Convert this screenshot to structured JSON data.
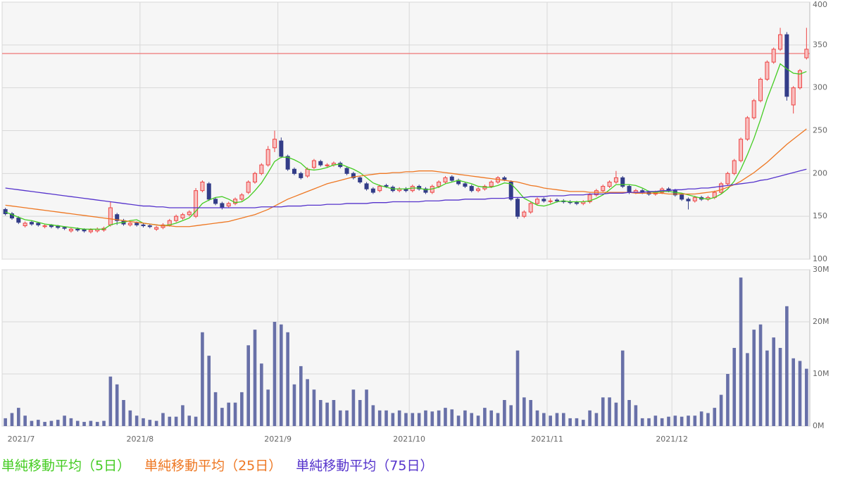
{
  "chart_data": {
    "type": "candlestick",
    "categories": [
      "2021/7",
      null,
      null,
      null,
      null,
      null,
      null,
      null,
      null,
      null,
      null,
      null,
      null,
      null,
      null,
      null,
      null,
      null,
      null,
      null,
      null,
      "2021/8",
      null,
      null,
      null,
      null,
      null,
      null,
      null,
      null,
      null,
      null,
      null,
      null,
      null,
      null,
      null,
      null,
      null,
      null,
      null,
      null,
      "2021/9",
      null,
      null,
      null,
      null,
      null,
      null,
      null,
      null,
      null,
      null,
      null,
      null,
      null,
      null,
      null,
      null,
      null,
      null,
      null,
      "2021/10",
      null,
      null,
      null,
      null,
      null,
      null,
      null,
      null,
      null,
      null,
      null,
      null,
      null,
      null,
      null,
      null,
      null,
      null,
      null,
      null,
      "2021/11",
      null,
      null,
      null,
      null,
      null,
      null,
      null,
      null,
      null,
      null,
      null,
      null,
      null,
      null,
      null,
      null,
      null,
      null,
      "2021/12",
      null,
      null,
      null,
      null,
      null,
      null,
      null,
      null,
      null,
      null,
      null,
      null,
      null,
      null,
      null,
      null,
      null,
      null,
      null,
      null
    ],
    "ohlc": [
      [
        158,
        160,
        151,
        153
      ],
      [
        153,
        155,
        146,
        148
      ],
      [
        148,
        150,
        141,
        143
      ],
      [
        139,
        144,
        137,
        142
      ],
      [
        143,
        145,
        139,
        141
      ],
      [
        142,
        143,
        138,
        140
      ],
      [
        138,
        141,
        136,
        139
      ],
      [
        140,
        141,
        136,
        138
      ],
      [
        139,
        140,
        135,
        137
      ],
      [
        137,
        138,
        134,
        136
      ],
      [
        133,
        137,
        131,
        135
      ],
      [
        135,
        137,
        132,
        134
      ],
      [
        135,
        136,
        131,
        133
      ],
      [
        132,
        136,
        130,
        134
      ],
      [
        133,
        137,
        131,
        135
      ],
      [
        134,
        138,
        132,
        136
      ],
      [
        140,
        167,
        138,
        160
      ],
      [
        152,
        154,
        140,
        145
      ],
      [
        145,
        147,
        139,
        141
      ],
      [
        140,
        144,
        138,
        142
      ],
      [
        142,
        144,
        138,
        140
      ],
      [
        140,
        142,
        137,
        139
      ],
      [
        139,
        141,
        136,
        138
      ],
      [
        135,
        139,
        133,
        137
      ],
      [
        137,
        142,
        135,
        140
      ],
      [
        140,
        147,
        138,
        145
      ],
      [
        145,
        152,
        143,
        150
      ],
      [
        148,
        154,
        146,
        152
      ],
      [
        152,
        157,
        150,
        155
      ],
      [
        150,
        183,
        148,
        180
      ],
      [
        180,
        192,
        178,
        190
      ],
      [
        188,
        190,
        168,
        170
      ],
      [
        170,
        172,
        163,
        165
      ],
      [
        165,
        167,
        158,
        160
      ],
      [
        162,
        167,
        160,
        165
      ],
      [
        165,
        172,
        163,
        170
      ],
      [
        170,
        177,
        168,
        175
      ],
      [
        178,
        192,
        176,
        190
      ],
      [
        190,
        202,
        188,
        200
      ],
      [
        200,
        212,
        198,
        210
      ],
      [
        210,
        232,
        208,
        228
      ],
      [
        230,
        250,
        225,
        240
      ],
      [
        238,
        242,
        218,
        220
      ],
      [
        220,
        222,
        203,
        205
      ],
      [
        205,
        207,
        198,
        200
      ],
      [
        200,
        202,
        193,
        195
      ],
      [
        197,
        207,
        195,
        205
      ],
      [
        207,
        217,
        205,
        215
      ],
      [
        214,
        216,
        208,
        210
      ],
      [
        209,
        212,
        207,
        210
      ],
      [
        210,
        214,
        208,
        212
      ],
      [
        212,
        214,
        206,
        208
      ],
      [
        206,
        208,
        198,
        200
      ],
      [
        200,
        202,
        193,
        195
      ],
      [
        195,
        197,
        188,
        190
      ],
      [
        188,
        190,
        180,
        182
      ],
      [
        182,
        184,
        176,
        178
      ],
      [
        180,
        187,
        178,
        185
      ],
      [
        186,
        188,
        183,
        185
      ],
      [
        184,
        186,
        178,
        180
      ],
      [
        180,
        184,
        178,
        182
      ],
      [
        182,
        184,
        178,
        180
      ],
      [
        180,
        187,
        178,
        185
      ],
      [
        185,
        187,
        180,
        182
      ],
      [
        182,
        184,
        176,
        178
      ],
      [
        178,
        187,
        176,
        185
      ],
      [
        185,
        192,
        183,
        190
      ],
      [
        190,
        197,
        188,
        195
      ],
      [
        196,
        198,
        190,
        192
      ],
      [
        192,
        194,
        186,
        188
      ],
      [
        188,
        190,
        183,
        185
      ],
      [
        185,
        187,
        178,
        180
      ],
      [
        180,
        184,
        178,
        182
      ],
      [
        182,
        187,
        180,
        185
      ],
      [
        185,
        192,
        183,
        190
      ],
      [
        190,
        197,
        188,
        195
      ],
      [
        195,
        197,
        191,
        193
      ],
      [
        190,
        192,
        168,
        170
      ],
      [
        170,
        172,
        147,
        150
      ],
      [
        150,
        157,
        148,
        155
      ],
      [
        155,
        167,
        153,
        165
      ],
      [
        165,
        172,
        163,
        170
      ],
      [
        170,
        172,
        166,
        168
      ],
      [
        168,
        171,
        165,
        168
      ],
      [
        169,
        171,
        166,
        168
      ],
      [
        168,
        170,
        165,
        167
      ],
      [
        167,
        169,
        164,
        166
      ],
      [
        166,
        168,
        163,
        165
      ],
      [
        165,
        169,
        163,
        167
      ],
      [
        167,
        177,
        165,
        175
      ],
      [
        175,
        182,
        173,
        180
      ],
      [
        180,
        187,
        178,
        185
      ],
      [
        185,
        192,
        183,
        190
      ],
      [
        190,
        203,
        188,
        195
      ],
      [
        195,
        197,
        183,
        185
      ],
      [
        185,
        187,
        176,
        178
      ],
      [
        178,
        182,
        176,
        180
      ],
      [
        180,
        182,
        176,
        178
      ],
      [
        178,
        180,
        174,
        176
      ],
      [
        176,
        180,
        174,
        178
      ],
      [
        178,
        184,
        176,
        182
      ],
      [
        182,
        184,
        178,
        180
      ],
      [
        180,
        182,
        173,
        175
      ],
      [
        175,
        177,
        168,
        170
      ],
      [
        170,
        172,
        158,
        168
      ],
      [
        168,
        174,
        166,
        172
      ],
      [
        172,
        174,
        168,
        170
      ],
      [
        170,
        174,
        168,
        172
      ],
      [
        172,
        180,
        170,
        178
      ],
      [
        178,
        190,
        176,
        188
      ],
      [
        188,
        202,
        186,
        200
      ],
      [
        200,
        217,
        198,
        215
      ],
      [
        215,
        242,
        213,
        240
      ],
      [
        240,
        267,
        238,
        265
      ],
      [
        265,
        287,
        263,
        285
      ],
      [
        285,
        312,
        283,
        310
      ],
      [
        310,
        332,
        308,
        330
      ],
      [
        330,
        347,
        328,
        345
      ],
      [
        345,
        370,
        343,
        362
      ],
      [
        362,
        365,
        285,
        290
      ],
      [
        280,
        302,
        270,
        300
      ],
      [
        300,
        322,
        298,
        320
      ],
      [
        335,
        370,
        333,
        345
      ]
    ],
    "up_color": "#ee4444",
    "down_color": "#333d88",
    "ylim": [
      100,
      400
    ],
    "yticks": [
      100,
      150,
      200,
      250,
      300,
      350,
      400
    ],
    "grid": true,
    "reference_line": 340,
    "reference_color": "#ee7777",
    "moving_averages": [
      {
        "name": "単純移動平均（5日）",
        "color": "#44cc22",
        "values": [
          155,
          152,
          149,
          146,
          145,
          143,
          141,
          140,
          139,
          138,
          137,
          136,
          135,
          135,
          135,
          135,
          140,
          142,
          143,
          145,
          146,
          142,
          141,
          140,
          139,
          140,
          142,
          145,
          148,
          156,
          165,
          169,
          172,
          173,
          170,
          166,
          167,
          172,
          180,
          189,
          201,
          214,
          219,
          219,
          216,
          212,
          205,
          204,
          205,
          207,
          210,
          211,
          208,
          205,
          201,
          195,
          189,
          186,
          184,
          182,
          182,
          182,
          183,
          183,
          181,
          182,
          184,
          188,
          190,
          192,
          190,
          188,
          185,
          184,
          184,
          186,
          189,
          188,
          180,
          171,
          167,
          163,
          162,
          164,
          167,
          168,
          167,
          167,
          167,
          168,
          171,
          175,
          181,
          187,
          187,
          187,
          186,
          183,
          179,
          178,
          179,
          179,
          178,
          177,
          175,
          173,
          171,
          170,
          172,
          176,
          182,
          191,
          205,
          222,
          241,
          263,
          287,
          307,
          328,
          322,
          317,
          316,
          319
        ]
      },
      {
        "name": "単純移動平均（25日）",
        "color": "#ee7722",
        "values": [
          163,
          162,
          161,
          160,
          159,
          158,
          157,
          156,
          155,
          154,
          153,
          152,
          151,
          150,
          149,
          148,
          147,
          146,
          145,
          144,
          143,
          142,
          141,
          140,
          139,
          139,
          138,
          138,
          138,
          139,
          140,
          141,
          142,
          143,
          144,
          146,
          148,
          150,
          152,
          155,
          158,
          162,
          166,
          170,
          173,
          176,
          179,
          182,
          185,
          188,
          190,
          192,
          194,
          196,
          197,
          198,
          199,
          200,
          200,
          201,
          201,
          202,
          202,
          203,
          203,
          203,
          202,
          201,
          200,
          199,
          198,
          197,
          196,
          195,
          194,
          193,
          192,
          191,
          190,
          188,
          186,
          185,
          183,
          182,
          181,
          180,
          179,
          179,
          179,
          178,
          178,
          178,
          178,
          178,
          178,
          178,
          177,
          177,
          177,
          177,
          177,
          176,
          176,
          176,
          176,
          176,
          177,
          178,
          179,
          181,
          184,
          187,
          191,
          196,
          201,
          207,
          213,
          220,
          227,
          234,
          240,
          246,
          252
        ]
      },
      {
        "name": "単純移動平均（75日）",
        "color": "#5533cc",
        "values": [
          183,
          182,
          181,
          180,
          179,
          178,
          177,
          176,
          175,
          174,
          173,
          172,
          171,
          170,
          169,
          168,
          167,
          166,
          165,
          164,
          163,
          162,
          162,
          161,
          161,
          160,
          160,
          160,
          160,
          160,
          160,
          160,
          160,
          160,
          160,
          160,
          160,
          160,
          160,
          161,
          161,
          161,
          161,
          162,
          162,
          162,
          163,
          163,
          163,
          164,
          164,
          164,
          165,
          165,
          165,
          165,
          166,
          166,
          166,
          167,
          167,
          167,
          167,
          167,
          168,
          168,
          168,
          169,
          169,
          169,
          170,
          170,
          170,
          170,
          171,
          171,
          171,
          172,
          172,
          172,
          173,
          173,
          173,
          174,
          174,
          174,
          175,
          175,
          175,
          176,
          176,
          176,
          177,
          177,
          177,
          178,
          178,
          178,
          179,
          179,
          180,
          180,
          181,
          181,
          182,
          182,
          183,
          183,
          184,
          185,
          186,
          187,
          188,
          189,
          190,
          192,
          193,
          195,
          197,
          199,
          201,
          203,
          205
        ]
      }
    ],
    "volume": {
      "type": "bar",
      "color": "#6870a8",
      "values": [
        1.5,
        2.5,
        3.5,
        2,
        1,
        1.2,
        0.8,
        1,
        1.2,
        2,
        1.5,
        1,
        0.8,
        1,
        0.8,
        1,
        9.5,
        8,
        5,
        3,
        2,
        1.5,
        1.2,
        1,
        2.5,
        1.8,
        1.8,
        4,
        2,
        1.8,
        18,
        13.5,
        6.5,
        3.5,
        4.5,
        4.5,
        6.5,
        15.5,
        18.5,
        12,
        7,
        20,
        19.5,
        18,
        8,
        11.5,
        9,
        7,
        5,
        4.5,
        5,
        3,
        3,
        7,
        5,
        7,
        4,
        3,
        3,
        2.5,
        3,
        2.5,
        2.5,
        2.5,
        3,
        2.8,
        3,
        3.5,
        3.2,
        2,
        3,
        2.5,
        2,
        3.5,
        3,
        2.5,
        5,
        4,
        14.5,
        5.5,
        5,
        3,
        2.5,
        2,
        2.5,
        2.5,
        1.5,
        1.5,
        1.2,
        3,
        2.5,
        5.5,
        5.5,
        4.5,
        14.5,
        5,
        4,
        1.5,
        1.5,
        2,
        1.5,
        1.8,
        2,
        1.8,
        2,
        2,
        2.8,
        2.5,
        3.5,
        6,
        10,
        15,
        28.5,
        14,
        18.5,
        19.5,
        14.5,
        17,
        15,
        23,
        13,
        12.5,
        11
      ],
      "ylim": [
        0,
        30
      ],
      "yticks": [
        {
          "value": 0,
          "label": "0M"
        },
        {
          "value": 10,
          "label": "10M"
        },
        {
          "value": 20,
          "label": "20M"
        },
        {
          "value": 30,
          "label": "30M"
        }
      ]
    }
  }
}
